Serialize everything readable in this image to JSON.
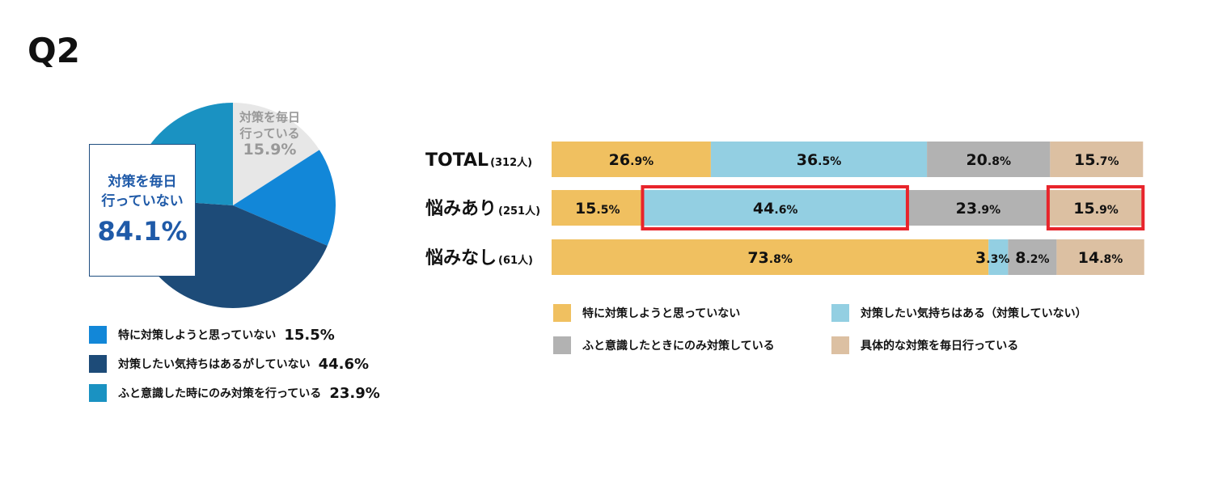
{
  "title": "Q2",
  "chart_data": [
    {
      "type": "pie",
      "slices": [
        {
          "label": "対策を毎日行っている",
          "value": 15.9,
          "color": "#e7e7e7"
        },
        {
          "label": "特に対策しようと思っていない",
          "value": 15.5,
          "color": "#1287d8"
        },
        {
          "label": "対策したい気持ちはあるがしていない",
          "value": 44.6,
          "color": "#1d4b78"
        },
        {
          "label": "ふと意識した時にのみ対策を行っている",
          "value": 23.9,
          "color": "#1a92c2"
        }
      ],
      "highlight_label": {
        "line1": "対策を毎日",
        "line2": "行っていない",
        "value": "84.1%"
      },
      "small_label": {
        "line1": "対策を毎日",
        "line2": "行っている",
        "value": "15.9%"
      },
      "legend": [
        {
          "label": "特に対策しようと思っていない",
          "value": "15.5%",
          "color": "#1287d8"
        },
        {
          "label": "対策したい気持ちはあるがしていない",
          "value": "44.6%",
          "color": "#1d4b78"
        },
        {
          "label": "ふと意識した時にのみ対策を行っている",
          "value": "23.9%",
          "color": "#1a92c2"
        }
      ]
    },
    {
      "type": "bar",
      "orientation": "horizontal",
      "stacked": true,
      "categories": [
        {
          "name": "TOTAL",
          "n": "(312人)"
        },
        {
          "name": "悩みあり",
          "n": "(251人)"
        },
        {
          "name": "悩みなし",
          "n": "(61人)"
        }
      ],
      "series": [
        {
          "name": "特に対策しようと思っていない",
          "values": [
            26.9,
            15.5,
            73.8
          ],
          "color": "#f0c060"
        },
        {
          "name": "対策したい気持ちはある（対策していない）",
          "values": [
            36.5,
            44.6,
            3.3
          ],
          "color": "#93cfe2"
        },
        {
          "name": "ふと意識したときにのみ対策している",
          "values": [
            20.8,
            23.9,
            8.2
          ],
          "color": "#b2b2b2"
        },
        {
          "name": "具体的な対策を毎日行っている",
          "values": [
            15.7,
            15.9,
            14.8
          ],
          "color": "#dcc0a2"
        }
      ],
      "highlighted": [
        {
          "category": 1,
          "series": 1
        },
        {
          "category": 1,
          "series": 3
        }
      ],
      "highlight_color": "#e8242b"
    }
  ]
}
